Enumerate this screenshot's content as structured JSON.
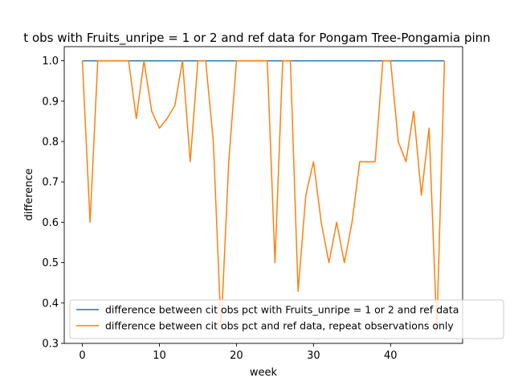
{
  "chart_data": {
    "type": "line",
    "title": "t obs with Fruits_unripe = 1 or 2 and ref data for Pongam Tree-Pongamia pinn",
    "xlabel": "week",
    "ylabel": "difference",
    "xlim": [
      -2.35,
      49.35
    ],
    "ylim": [
      0.3,
      1.035
    ],
    "xticks": [
      0,
      10,
      20,
      30,
      40
    ],
    "yticks": [
      0.3,
      0.4,
      0.5,
      0.6,
      0.7,
      0.8,
      0.9,
      1.0
    ],
    "ytick_labels": [
      "0.3",
      "0.4",
      "0.5",
      "0.6",
      "0.7",
      "0.8",
      "0.9",
      "1.0"
    ],
    "grid": false,
    "legend_position": "lower-center",
    "series": [
      {
        "name": "difference between cit obs pct with Fruits_unripe = 1 or 2 and ref data",
        "color": "#1f77b4",
        "x": [
          0,
          47
        ],
        "y": [
          1.0,
          1.0
        ]
      },
      {
        "name": "difference between cit obs pct and ref data, repeat observations only",
        "color": "#ff7f0e",
        "x": [
          0,
          1,
          2,
          3,
          4,
          5,
          6,
          7,
          8,
          9,
          10,
          11,
          12,
          13,
          14,
          15,
          16,
          17,
          18,
          19,
          20,
          21,
          22,
          23,
          24,
          25,
          26,
          27,
          28,
          29,
          30,
          31,
          32,
          33,
          34,
          35,
          36,
          37,
          38,
          39,
          40,
          41,
          42,
          43,
          44,
          45,
          46,
          47
        ],
        "y": [
          1.0,
          0.6,
          1.0,
          1.0,
          1.0,
          1.0,
          1.0,
          0.857,
          1.0,
          0.875,
          0.833,
          0.857,
          0.889,
          1.0,
          0.75,
          1.0,
          1.0,
          0.8,
          0.333,
          0.75,
          1.0,
          1.0,
          1.0,
          1.0,
          1.0,
          0.5,
          1.0,
          1.0,
          0.429,
          0.667,
          0.75,
          0.6,
          0.5,
          0.6,
          0.5,
          0.6,
          0.75,
          0.75,
          0.75,
          1.0,
          1.0,
          0.8,
          0.75,
          0.875,
          0.667,
          0.833,
          0.333,
          1.0
        ]
      }
    ]
  }
}
